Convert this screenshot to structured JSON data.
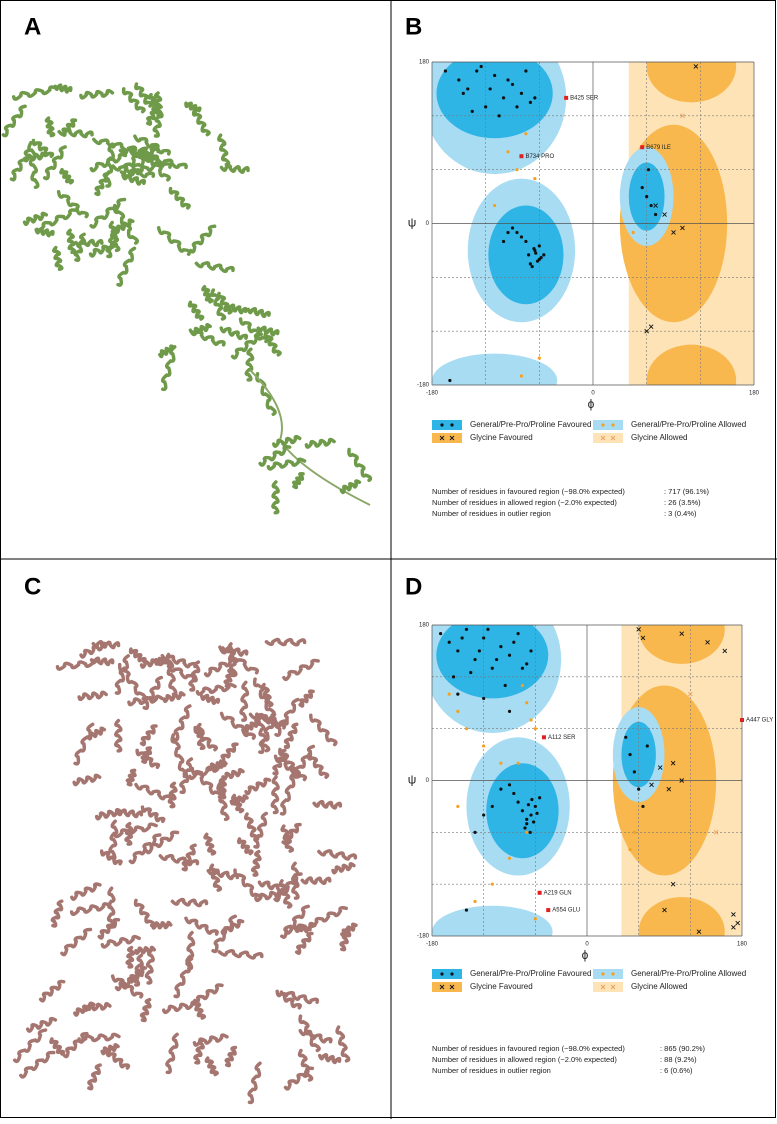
{
  "panels": [
    {
      "label": "A"
    },
    {
      "label": "B"
    },
    {
      "label": "C"
    },
    {
      "label": "D"
    }
  ],
  "chart_data": [
    {
      "type": "scatter",
      "xlabel": "ϕ",
      "ylabel": "ψ",
      "xlim": [
        -180,
        180
      ],
      "ylim": [
        -180,
        180
      ],
      "xticks": [
        -180,
        0,
        180
      ],
      "yticks": [
        -180,
        0,
        180
      ],
      "series": [
        {
          "name": "General/Pre-Pro/Proline Favoured",
          "color": "#111111",
          "region_color": "#2fb4e6",
          "marker": "dot",
          "x": [
            -150,
            -140,
            -130,
            -120,
            -110,
            -100,
            -90,
            -80,
            -70,
            -135,
            -125,
            -115,
            -105,
            -95,
            -85,
            -75,
            -65,
            -145,
            -60,
            -55,
            -70,
            -65,
            -60,
            -75,
            -80,
            -85,
            -90,
            -62,
            -58,
            -68,
            -72,
            -66,
            -64,
            -100,
            -95,
            55,
            60,
            65,
            70,
            62,
            -165,
            -160
          ],
          "values": [
            160,
            150,
            170,
            130,
            165,
            140,
            155,
            145,
            135,
            125,
            175,
            150,
            120,
            160,
            130,
            170,
            140,
            145,
            -40,
            -35,
            -45,
            -30,
            -25,
            -20,
            -15,
            -10,
            -5,
            -42,
            -38,
            -48,
            -35,
            -28,
            -33,
            -20,
            -10,
            40,
            30,
            20,
            10,
            60,
            170,
            -175
          ]
        },
        {
          "name": "General/Pre-Pro/Proline Allowed",
          "color": "#f5a020",
          "region_color": "#a8dcf2",
          "marker": "dot",
          "x": [
            -95,
            -85,
            -75,
            -110,
            -80,
            -60,
            -65,
            45
          ],
          "values": [
            80,
            60,
            100,
            20,
            -170,
            -150,
            50,
            -10
          ]
        },
        {
          "name": "Glycine Favoured",
          "color": "#111111",
          "region_color": "#f8b84e",
          "marker": "cross",
          "x": [
            80,
            90,
            100,
            70,
            115,
            60,
            65
          ],
          "values": [
            10,
            -10,
            -5,
            20,
            175,
            -120,
            -115
          ]
        },
        {
          "name": "Glycine Allowed",
          "color": "#e8a060",
          "region_color": "#fde3b6",
          "marker": "cross",
          "x": [
            100
          ],
          "values": [
            120
          ]
        }
      ],
      "outliers": {
        "color": "#e02020",
        "labels": [
          "B425 SER",
          "B734 PRO",
          "B679 ILE"
        ],
        "x": [
          -30,
          -80,
          55
        ],
        "values": [
          140,
          75,
          85
        ]
      },
      "stats": [
        {
          "label": "Number of residues in favoured region (~98.0% expected)",
          "value": ":  717  (96.1%)"
        },
        {
          "label": "Number of residues in allowed region (~2.0% expected)",
          "value": ":  26  (3.5%)"
        },
        {
          "label": "Number of residues in outlier region",
          "value": ":  3  (0.4%)"
        }
      ]
    },
    {
      "type": "scatter",
      "xlabel": "ϕ",
      "ylabel": "ψ",
      "xlim": [
        -180,
        180
      ],
      "ylim": [
        -180,
        180
      ],
      "xticks": [
        -180,
        0,
        180
      ],
      "yticks": [
        -180,
        0,
        180
      ],
      "series": [
        {
          "name": "General/Pre-Pro/Proline Favoured",
          "color": "#111111",
          "region_color": "#2fb4e6",
          "marker": "dot",
          "x": [
            -170,
            -160,
            -150,
            -140,
            -130,
            -120,
            -110,
            -100,
            -90,
            -80,
            -70,
            -155,
            -145,
            -135,
            -125,
            -115,
            -105,
            -95,
            -85,
            -75,
            -65,
            -150,
            -120,
            -90,
            -70,
            -65,
            -60,
            -55,
            -70,
            -75,
            -80,
            -85,
            -90,
            -100,
            -110,
            -62,
            -58,
            -68,
            -72,
            -66,
            -64,
            -120,
            -130,
            45,
            50,
            55,
            60,
            65,
            70,
            -140
          ],
          "values": [
            170,
            160,
            150,
            175,
            140,
            165,
            130,
            155,
            145,
            170,
            135,
            120,
            165,
            125,
            150,
            175,
            140,
            110,
            160,
            130,
            150,
            100,
            95,
            80,
            -50,
            -40,
            -30,
            -20,
            -45,
            -35,
            -25,
            -15,
            -5,
            -10,
            -30,
            -48,
            -38,
            -28,
            -55,
            -60,
            -22,
            -40,
            -60,
            50,
            30,
            10,
            -10,
            -30,
            40,
            -150
          ]
        },
        {
          "name": "General/Pre-Pro/Proline Allowed",
          "color": "#f5a020",
          "region_color": "#a8dcf2",
          "marker": "dot",
          "x": [
            -160,
            -150,
            -140,
            -120,
            -100,
            -75,
            -70,
            -65,
            -60,
            -70,
            -90,
            -110,
            -150,
            -60,
            55,
            50,
            -80,
            -130
          ],
          "values": [
            100,
            80,
            60,
            40,
            20,
            110,
            90,
            70,
            60,
            -60,
            -90,
            -120,
            -30,
            -160,
            -60,
            -80,
            20,
            -140
          ]
        },
        {
          "name": "Glycine Favoured",
          "color": "#111111",
          "region_color": "#f8b84e",
          "marker": "cross",
          "x": [
            75,
            85,
            95,
            100,
            110,
            60,
            65,
            110,
            140,
            160,
            170,
            90,
            100,
            130,
            170,
            175
          ],
          "values": [
            -5,
            15,
            -10,
            20,
            0,
            175,
            165,
            170,
            160,
            150,
            -170,
            -150,
            -120,
            -175,
            -155,
            -165
          ]
        },
        {
          "name": "Glycine Allowed",
          "color": "#e8a060",
          "region_color": "#fde3b6",
          "marker": "cross",
          "x": [
            120,
            150
          ],
          "values": [
            100,
            -60
          ]
        }
      ],
      "outliers": {
        "color": "#e02020",
        "labels": [
          "A112 SER",
          "A219 GLN",
          "A554 GLU",
          "A447 GLY"
        ],
        "x": [
          -50,
          -55,
          -45,
          180
        ],
        "values": [
          50,
          -130,
          -150,
          70
        ]
      },
      "stats": [
        {
          "label": "Number of residues in favoured region (~98.0% expected)",
          "value": ":  865  (90.2%)"
        },
        {
          "label": "Number of residues in allowed region (~2.0% expected)",
          "value": ":  88  (9.2%)"
        },
        {
          "label": "Number of residues in outlier region",
          "value": ":  6  (0.6%)"
        }
      ]
    }
  ]
}
